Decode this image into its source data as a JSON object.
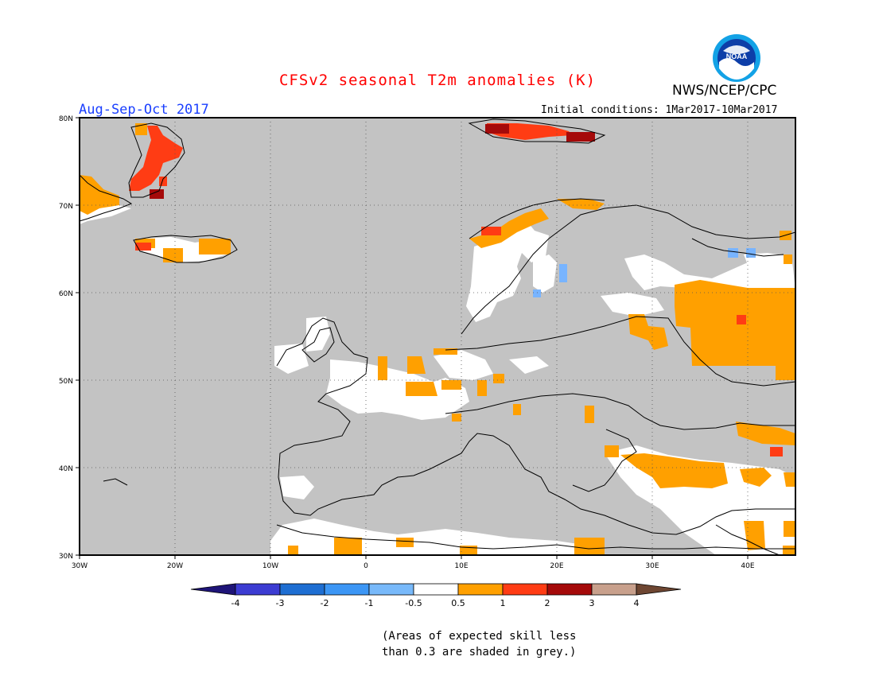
{
  "header": {
    "title": "CFSv2 seasonal T2m anomalies (K)",
    "agency": "NWS/NCEP/CPC",
    "period": "Aug-Sep-Oct 2017",
    "initial_conditions": "Initial conditions: 1Mar2017-10Mar2017",
    "logo_text": "NOAA"
  },
  "map": {
    "region": "Europe",
    "lon_range": [
      -30,
      45
    ],
    "lat_range": [
      30,
      80
    ],
    "grid": true,
    "x_ticks": [
      "30W",
      "20W",
      "10W",
      "0",
      "10E",
      "20E",
      "30E",
      "40E"
    ],
    "y_ticks": [
      "30N",
      "40N",
      "50N",
      "60N",
      "70N",
      "80N"
    ],
    "colors": {
      "ocean_low_skill": "#c3c3c3",
      "neutral": "#ffffff",
      "warm_0_5_1": "#ffa000",
      "warm_1_2": "#ff4010",
      "warm_2_3": "#a50a0a",
      "cool_minus1_minus0_5": "#78b4ff"
    }
  },
  "colorbar": {
    "labels": [
      "-4",
      "-3",
      "-2",
      "-1",
      "-0.5",
      "0.5",
      "1",
      "2",
      "3",
      "4"
    ],
    "colors": [
      "#1e1478",
      "#3c3cd2",
      "#1e6ed2",
      "#3c96f5",
      "#78b9fa",
      "#ffffff",
      "#ffa000",
      "#ff3c14",
      "#a50a0a",
      "#c8a08c",
      "#6e4632"
    ]
  },
  "note": {
    "line1": "(Areas of expected skill less",
    "line2": "than 0.3 are shaded in grey.)"
  }
}
